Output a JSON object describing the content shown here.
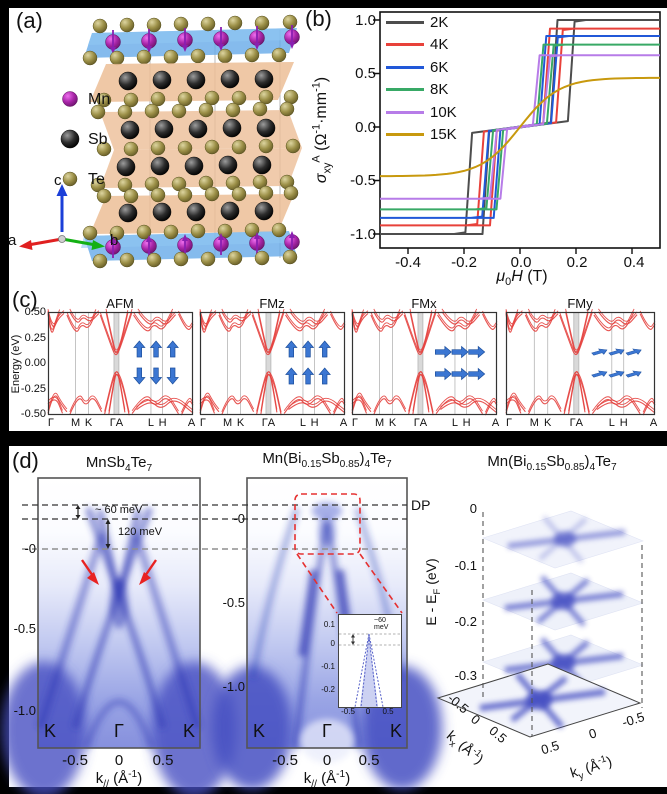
{
  "figure": {
    "a": {
      "label": "(a)",
      "legend": [
        {
          "name": "Mn",
          "color": "#b32fb3"
        },
        {
          "name": "Sb",
          "color": "#1c1c1c"
        },
        {
          "name": "Te",
          "color": "#a39a52"
        }
      ],
      "axes": {
        "a": "a",
        "b": "b",
        "c": "c"
      }
    },
    "b": {
      "label": "(b)",
      "ylabel_html": "<i>σ</i><sub>xy</sub><sup>A</sup> (Ω<sup>-1</sup>·mm<sup>-1</sup>)",
      "xlabel_html": "<i>μ</i><sub>0</sub><i>H</i> (T)",
      "y_ticks": [
        "1.0",
        "0.5",
        "0.0",
        "-0.5",
        "-1.0"
      ],
      "x_ticks": [
        "-0.4",
        "-0.2",
        "0.0",
        "0.2",
        "0.4"
      ]
    },
    "c": {
      "label": "(c)",
      "ylabel": "Energy (eV)",
      "y_ticks": [
        "0.50",
        "0.25",
        "0.00",
        "-0.25",
        "-0.50"
      ],
      "k_ticks": [
        "Γ",
        "M",
        "K",
        "ΓA",
        "L",
        "H",
        "A"
      ],
      "panels": [
        {
          "title": "AFM",
          "spin": "afm"
        },
        {
          "title": "FMz",
          "spin": "fmz"
        },
        {
          "title": "FMx",
          "spin": "fmx"
        },
        {
          "title": "FMy",
          "spin": "fmy"
        }
      ]
    },
    "d": {
      "label": "(d)",
      "left": {
        "title_html": "MnSb<sub>4</sub>Te<sub>7</sub>",
        "ann_60": "~ 60 meV",
        "ann_120": "120 meV",
        "y_ticks": [
          "-0",
          "-0.5",
          "-1.0"
        ],
        "x_ticks": [
          "-0.5",
          "0",
          "0.5"
        ],
        "xlabel_html": "k<sub>//</sub> (Å<sup>-1</sup>)",
        "inner_labels": [
          "K",
          "Γ",
          "K"
        ]
      },
      "mid": {
        "title_html": "Mn(Bi<sub>0.15</sub>Sb<sub>0.85</sub>)<sub>4</sub>Te<sub>7</sub>",
        "dp_label": "DP",
        "y_ticks": [
          "-0",
          "-0.5",
          "-1.0"
        ],
        "x_ticks": [
          "-0.5",
          "0",
          "0.5"
        ],
        "xlabel_html": "k<sub>//</sub> (Å<sup>-1</sup>)",
        "inner_labels": [
          "K",
          "Γ",
          "K"
        ],
        "inset": {
          "y_ticks": [
            "0.1",
            "0",
            "-0.1",
            "-0.2"
          ],
          "x_ticks": [
            "-0.5",
            "0",
            "0.5"
          ],
          "ann_html": "~60<br>meV"
        }
      },
      "right": {
        "title_html": "Mn(Bi<sub>0.15</sub>Sb<sub>0.85</sub>)<sub>4</sub>Te<sub>7</sub>",
        "elabel_html": "E - E<sub>F</sub> (eV)",
        "e_ticks": [
          "0",
          "-0.1",
          "-0.2",
          "-0.3"
        ],
        "kx_ticks": [
          "-0.5",
          "0",
          "0.5"
        ],
        "ky_ticks": [
          "0.5",
          "0",
          "-0.5"
        ],
        "kxlabel_html": "k<sub>x</sub> (Å<sup>-1</sup>)",
        "kylabel_html": "k<sub>y</sub> (Å<sup>-1</sup>)"
      }
    }
  },
  "chart_data": [
    {
      "type": "line",
      "title": "Anomalous Hall conductivity hysteresis loops",
      "xlabel": "μ0H (T)",
      "ylabel": "σxy^A (Ω-1·mm-1)",
      "x_range": [
        -0.5,
        0.5
      ],
      "y_range": [
        -1.1,
        1.1
      ],
      "x_tick_values": [
        -0.4,
        -0.2,
        0.0,
        0.2,
        0.4
      ],
      "y_tick_values": [
        -1.0,
        -0.5,
        0.0,
        0.5,
        1.0
      ],
      "legend_position": "top-left inside",
      "series": [
        {
          "name": "2K",
          "color": "#4d4d4d",
          "saturation": 1.0,
          "release_field": 0.13,
          "flip_field": 0.175,
          "smooth": false
        },
        {
          "name": "4K",
          "color": "#e8413a",
          "saturation": 0.92,
          "release_field": 0.103,
          "flip_field": 0.133,
          "smooth": false
        },
        {
          "name": "6K",
          "color": "#2158d8",
          "saturation": 0.85,
          "release_field": 0.09,
          "flip_field": 0.115,
          "smooth": false
        },
        {
          "name": "8K",
          "color": "#38a966",
          "saturation": 0.77,
          "release_field": 0.08,
          "flip_field": 0.1,
          "smooth": false
        },
        {
          "name": "10K",
          "color": "#b77ce8",
          "saturation": 0.67,
          "release_field": 0.066,
          "flip_field": 0.087,
          "smooth": false
        },
        {
          "name": "15K",
          "color": "#c8990e",
          "saturation": 0.46,
          "width": 0.14,
          "smooth": true
        }
      ]
    },
    {
      "type": "line",
      "title": "DFT band structures of MnSb4Te7 for magnetic configurations",
      "ylabel": "Energy (eV)",
      "energy_range_eV": [
        -0.5,
        0.5
      ],
      "k_path_labels": [
        "Γ",
        "M",
        "K",
        "Γ|A",
        "L",
        "H",
        "A"
      ],
      "panels": [
        {
          "name": "AFM",
          "spin_config": "interlayer antiparallel, out-of-plane"
        },
        {
          "name": "FMz",
          "spin_config": "parallel, out-of-plane"
        },
        {
          "name": "FMx",
          "spin_config": "parallel, in-plane x"
        },
        {
          "name": "FMy",
          "spin_config": "parallel, in-plane y"
        }
      ],
      "band_color": "#e4403d"
    },
    {
      "type": "heatmap",
      "title": "ARPES band maps and constant-energy surfaces",
      "panels": [
        {
          "sample": "MnSb4Te7",
          "xlabel": "k// (Å-1)",
          "x_ticks": [
            -0.5,
            0,
            0.5
          ],
          "annotations": [
            "~ 60 meV",
            "120 meV"
          ],
          "inner_labels": [
            "K",
            "Γ",
            "K"
          ],
          "y_ticks_eV": [
            0,
            -0.5,
            -1.0
          ]
        },
        {
          "sample": "Mn(Bi0.15Sb0.85)4Te7",
          "xlabel": "k// (Å-1)",
          "x_ticks": [
            -0.5,
            0,
            0.5
          ],
          "annotations": [
            "DP",
            "~60 meV"
          ],
          "inner_labels": [
            "K",
            "Γ",
            "K"
          ],
          "y_ticks_eV": [
            0,
            -0.5,
            -1.0
          ],
          "inset": {
            "y_ticks_eV": [
              0.1,
              0,
              -0.1,
              -0.2
            ],
            "x_ticks": [
              -0.5,
              0,
              0.5
            ]
          }
        },
        {
          "sample": "Mn(Bi0.15Sb0.85)4Te7",
          "representation": "constant-energy stack",
          "slices_E_minus_EF_eV": [
            0,
            -0.1,
            -0.2,
            -0.3
          ],
          "kx_range": [
            -0.5,
            0.5
          ],
          "ky_range": [
            0.5,
            -0.5
          ]
        }
      ]
    }
  ]
}
